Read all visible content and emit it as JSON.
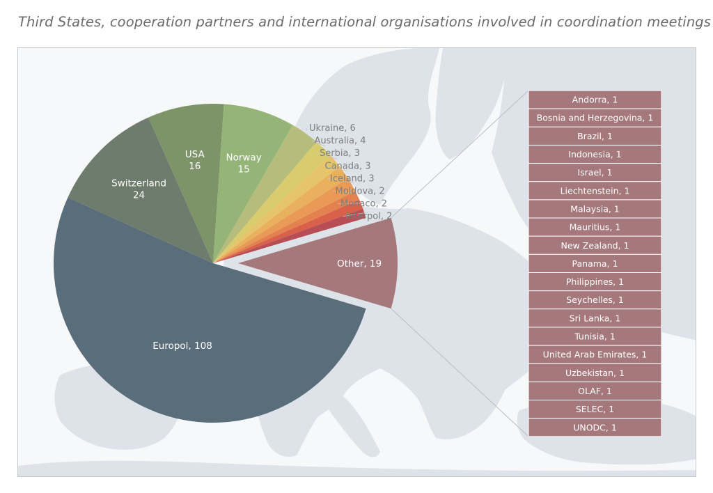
{
  "title": "Third States, cooperation partners and international organisations involved in coordination meetings",
  "chart_data": {
    "type": "pie",
    "title": "Third States, cooperation partners and international organisations involved in coordination meetings",
    "slices": [
      {
        "name": "Europol",
        "value": 108,
        "label": "Europol, 108",
        "color": "#5a6d7b",
        "style": "inside-one-line"
      },
      {
        "name": "Switzerland",
        "value": 24,
        "label": "Switzerland",
        "sub": "24",
        "color": "#6d7c6c",
        "style": "inside-two-line"
      },
      {
        "name": "USA",
        "value": 16,
        "label": "USA",
        "sub": "16",
        "color": "#7d9469",
        "style": "inside-two-line"
      },
      {
        "name": "Norway",
        "value": 15,
        "label": "Norway",
        "sub": "15",
        "color": "#95b477",
        "style": "inside-two-line"
      },
      {
        "name": "Ukraine",
        "value": 6,
        "label": "Ukraine, 6",
        "color": "#b6bd7c",
        "style": "outside"
      },
      {
        "name": "Australia",
        "value": 4,
        "label": "Australia, 4",
        "color": "#d9cc6e",
        "style": "outside"
      },
      {
        "name": "Serbia",
        "value": 3,
        "label": "Serbia, 3",
        "color": "#e6c56a",
        "style": "outside"
      },
      {
        "name": "Canada",
        "value": 3,
        "label": "Canada, 3",
        "color": "#e9b15e",
        "style": "outside"
      },
      {
        "name": "Iceland",
        "value": 3,
        "label": "Iceland, 3",
        "color": "#e89a56",
        "style": "outside"
      },
      {
        "name": "Moldova",
        "value": 2,
        "label": "Moldova, 2",
        "color": "#e4824f",
        "style": "outside"
      },
      {
        "name": "Monaco",
        "value": 2,
        "label": "Monaco, 2",
        "color": "#d9614a",
        "style": "outside"
      },
      {
        "name": "Interpol",
        "value": 2,
        "label": "Interpol, 2",
        "color": "#b84e55",
        "style": "outside"
      },
      {
        "name": "Other",
        "value": 19,
        "label": "Other, 19",
        "color": "#a5787c",
        "style": "exploded"
      }
    ],
    "other_breakdown": [
      {
        "name": "Andorra",
        "value": 1,
        "label": "Andorra, 1"
      },
      {
        "name": "Bosnia and Herzegovina",
        "value": 1,
        "label": "Bosnia and Herzegovina, 1"
      },
      {
        "name": "Brazil",
        "value": 1,
        "label": "Brazil, 1"
      },
      {
        "name": "Indonesia",
        "value": 1,
        "label": "Indonesia, 1"
      },
      {
        "name": "Israel",
        "value": 1,
        "label": "Israel, 1"
      },
      {
        "name": "Liechtenstein",
        "value": 1,
        "label": "Liechtenstein, 1"
      },
      {
        "name": "Malaysia",
        "value": 1,
        "label": "Malaysia, 1"
      },
      {
        "name": "Mauritius",
        "value": 1,
        "label": "Mauritius, 1"
      },
      {
        "name": "New Zealand",
        "value": 1,
        "label": "New Zealand, 1"
      },
      {
        "name": "Panama",
        "value": 1,
        "label": "Panama, 1"
      },
      {
        "name": "Philippines",
        "value": 1,
        "label": "Philippines, 1"
      },
      {
        "name": "Seychelles",
        "value": 1,
        "label": "Seychelles, 1"
      },
      {
        "name": "Sri Lanka",
        "value": 1,
        "label": "Sri Lanka, 1"
      },
      {
        "name": "Tunisia",
        "value": 1,
        "label": "Tunisia, 1"
      },
      {
        "name": "United Arab Emirates",
        "value": 1,
        "label": "United Arab Emirates, 1"
      },
      {
        "name": "Uzbekistan",
        "value": 1,
        "label": "Uzbekistan, 1"
      },
      {
        "name": "OLAF",
        "value": 1,
        "label": "OLAF, 1"
      },
      {
        "name": "SELEC",
        "value": 1,
        "label": "SELEC, 1"
      },
      {
        "name": "UNODC",
        "value": 1,
        "label": "UNODC, 1"
      }
    ],
    "other_color": "#a5787c",
    "map_color": "#dde3e8",
    "background_color": "#f7f8f9"
  }
}
